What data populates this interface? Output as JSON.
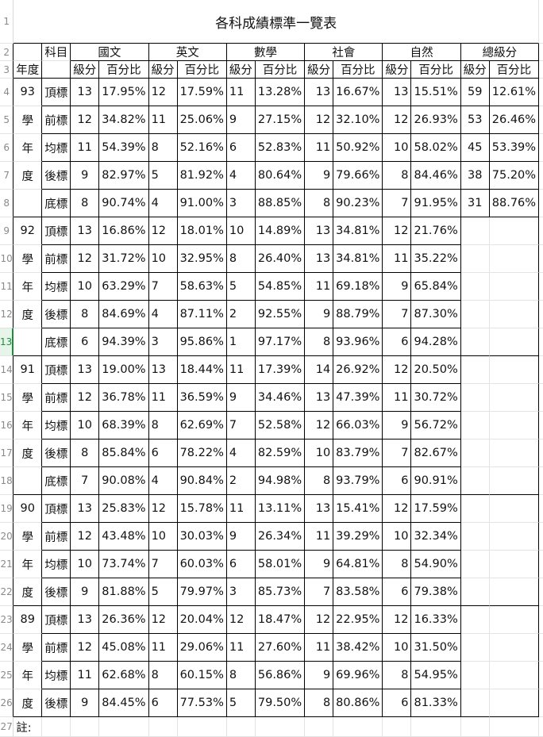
{
  "sheet": {
    "title": "各科成績標準一覽表",
    "subject_label": "科目",
    "year_label": "年度",
    "subjects": [
      "國文",
      "英文",
      "數學",
      "社會",
      "自然",
      "總級分"
    ],
    "sub_headers": [
      "級分",
      "百分比"
    ],
    "note": "註:",
    "selected_row": 13,
    "accent_color": "#1e8e3e",
    "rows": [
      {
        "a": "93",
        "b": "頂標",
        "v": [
          "13",
          "17.95%",
          "12",
          "17.59%",
          "11",
          "13.28%",
          "13",
          "16.67%",
          "13",
          "15.51%",
          "59",
          "12.61%"
        ]
      },
      {
        "a": "學",
        "b": "前標",
        "v": [
          "12",
          "34.82%",
          "11",
          "25.06%",
          "9",
          "27.15%",
          "12",
          "32.10%",
          "12",
          "26.93%",
          "53",
          "26.46%"
        ]
      },
      {
        "a": "年",
        "b": "均標",
        "v": [
          "11",
          "54.39%",
          "8",
          "52.16%",
          "6",
          "52.83%",
          "11",
          "50.92%",
          "10",
          "58.02%",
          "45",
          "53.39%"
        ]
      },
      {
        "a": "度",
        "b": "後標",
        "v": [
          "9",
          "82.97%",
          "5",
          "81.92%",
          "4",
          "80.64%",
          "9",
          "79.66%",
          "8",
          "84.46%",
          "38",
          "75.20%"
        ]
      },
      {
        "a": "",
        "b": "底標",
        "v": [
          "8",
          "90.74%",
          "4",
          "91.00%",
          "3",
          "88.85%",
          "8",
          "90.23%",
          "7",
          "91.95%",
          "31",
          "88.76%"
        ]
      },
      {
        "a": "92",
        "b": "頂標",
        "v": [
          "13",
          "16.86%",
          "12",
          "18.01%",
          "10",
          "14.89%",
          "13",
          "34.81%",
          "12",
          "21.76%"
        ]
      },
      {
        "a": "學",
        "b": "前標",
        "v": [
          "12",
          "31.72%",
          "10",
          "32.95%",
          "8",
          "26.40%",
          "13",
          "34.81%",
          "11",
          "35.22%"
        ]
      },
      {
        "a": "年",
        "b": "均標",
        "v": [
          "10",
          "63.29%",
          "7",
          "58.63%",
          "5",
          "54.85%",
          "11",
          "69.18%",
          "9",
          "65.84%"
        ]
      },
      {
        "a": "度",
        "b": "後標",
        "v": [
          "8",
          "84.69%",
          "4",
          "87.11%",
          "2",
          "92.55%",
          "9",
          "88.79%",
          "7",
          "87.30%"
        ]
      },
      {
        "a": "",
        "b": "底標",
        "v": [
          "6",
          "94.39%",
          "3",
          "95.86%",
          "1",
          "97.17%",
          "8",
          "93.96%",
          "6",
          "94.28%"
        ]
      },
      {
        "a": "91",
        "b": "頂標",
        "v": [
          "13",
          "19.00%",
          "13",
          "18.44%",
          "11",
          "17.39%",
          "14",
          "26.92%",
          "12",
          "20.50%"
        ]
      },
      {
        "a": "學",
        "b": "前標",
        "v": [
          "12",
          "36.78%",
          "11",
          "36.59%",
          "9",
          "34.46%",
          "13",
          "47.39%",
          "11",
          "30.72%"
        ]
      },
      {
        "a": "年",
        "b": "均標",
        "v": [
          "10",
          "68.39%",
          "8",
          "62.69%",
          "7",
          "52.58%",
          "12",
          "66.03%",
          "9",
          "56.72%"
        ]
      },
      {
        "a": "度",
        "b": "後標",
        "v": [
          "8",
          "85.84%",
          "6",
          "78.22%",
          "4",
          "82.59%",
          "10",
          "83.79%",
          "7",
          "82.67%"
        ]
      },
      {
        "a": "",
        "b": "底標",
        "v": [
          "7",
          "90.08%",
          "4",
          "90.84%",
          "2",
          "94.98%",
          "8",
          "93.79%",
          "6",
          "90.91%"
        ]
      },
      {
        "a": "90",
        "b": "頂標",
        "v": [
          "13",
          "25.83%",
          "12",
          "15.78%",
          "11",
          "13.11%",
          "13",
          "15.41%",
          "12",
          "17.59%"
        ]
      },
      {
        "a": "學",
        "b": "前標",
        "v": [
          "12",
          "43.48%",
          "10",
          "30.03%",
          "9",
          "26.34%",
          "11",
          "39.29%",
          "10",
          "32.34%"
        ]
      },
      {
        "a": "年",
        "b": "均標",
        "v": [
          "10",
          "73.74%",
          "7",
          "60.03%",
          "6",
          "58.01%",
          "9",
          "64.81%",
          "8",
          "54.90%"
        ]
      },
      {
        "a": "度",
        "b": "後標",
        "v": [
          "9",
          "81.88%",
          "5",
          "79.97%",
          "3",
          "85.73%",
          "7",
          "83.58%",
          "6",
          "79.38%"
        ]
      },
      {
        "a": "89",
        "b": "頂標",
        "v": [
          "13",
          "26.36%",
          "12",
          "20.04%",
          "12",
          "18.47%",
          "12",
          "22.95%",
          "12",
          "16.33%"
        ]
      },
      {
        "a": "學",
        "b": "前標",
        "v": [
          "12",
          "45.08%",
          "11",
          "29.06%",
          "11",
          "27.60%",
          "11",
          "38.42%",
          "10",
          "31.50%"
        ]
      },
      {
        "a": "年",
        "b": "均標",
        "v": [
          "11",
          "62.68%",
          "8",
          "60.15%",
          "8",
          "56.86%",
          "9",
          "69.96%",
          "8",
          "54.95%"
        ]
      },
      {
        "a": "度",
        "b": "後標",
        "v": [
          "9",
          "84.45%",
          "6",
          "77.53%",
          "5",
          "79.50%",
          "8",
          "80.86%",
          "6",
          "81.33%"
        ]
      }
    ]
  }
}
